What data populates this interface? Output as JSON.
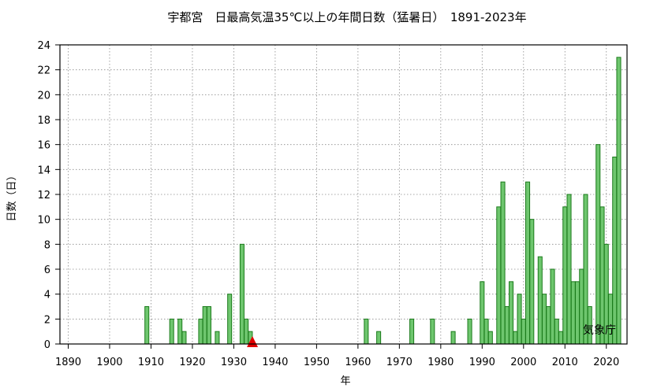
{
  "chart_data": {
    "type": "bar",
    "title": "宇都宮　日最高気温35℃以上の年間日数（猛暑日）　1891-2023年",
    "xlabel": "年",
    "ylabel": "日数（日）",
    "credit": "気象庁",
    "xlim": [
      1888,
      2025
    ],
    "ylim": [
      0,
      24
    ],
    "x_ticks": [
      1890,
      1900,
      1910,
      1920,
      1930,
      1940,
      1950,
      1960,
      1970,
      1980,
      1990,
      2000,
      2010,
      2020
    ],
    "y_ticks": [
      0,
      2,
      4,
      6,
      8,
      10,
      12,
      14,
      16,
      18,
      20,
      22,
      24
    ],
    "grid": true,
    "bar_color": "#6ec66e",
    "bar_edge_color": "#1a7a1a",
    "marker": {
      "x": 1934.5,
      "y": 0,
      "shape": "triangle",
      "color": "#e00000"
    },
    "x": [
      1909,
      1915,
      1917,
      1918,
      1922,
      1923,
      1924,
      1926,
      1929,
      1932,
      1933,
      1934,
      1962,
      1965,
      1973,
      1978,
      1983,
      1987,
      1990,
      1991,
      1992,
      1994,
      1995,
      1996,
      1997,
      1998,
      1999,
      2000,
      2001,
      2002,
      2004,
      2005,
      2006,
      2007,
      2008,
      2009,
      2010,
      2011,
      2012,
      2013,
      2014,
      2015,
      2016,
      2018,
      2019,
      2020,
      2021,
      2022,
      2023
    ],
    "values": [
      3,
      2,
      2,
      1,
      2,
      3,
      3,
      1,
      4,
      8,
      2,
      1,
      2,
      1,
      2,
      2,
      1,
      2,
      5,
      2,
      1,
      11,
      13,
      3,
      5,
      1,
      4,
      2,
      13,
      10,
      7,
      4,
      3,
      6,
      2,
      1,
      11,
      12,
      5,
      5,
      6,
      12,
      3,
      16,
      11,
      8,
      4,
      15,
      23
    ]
  }
}
